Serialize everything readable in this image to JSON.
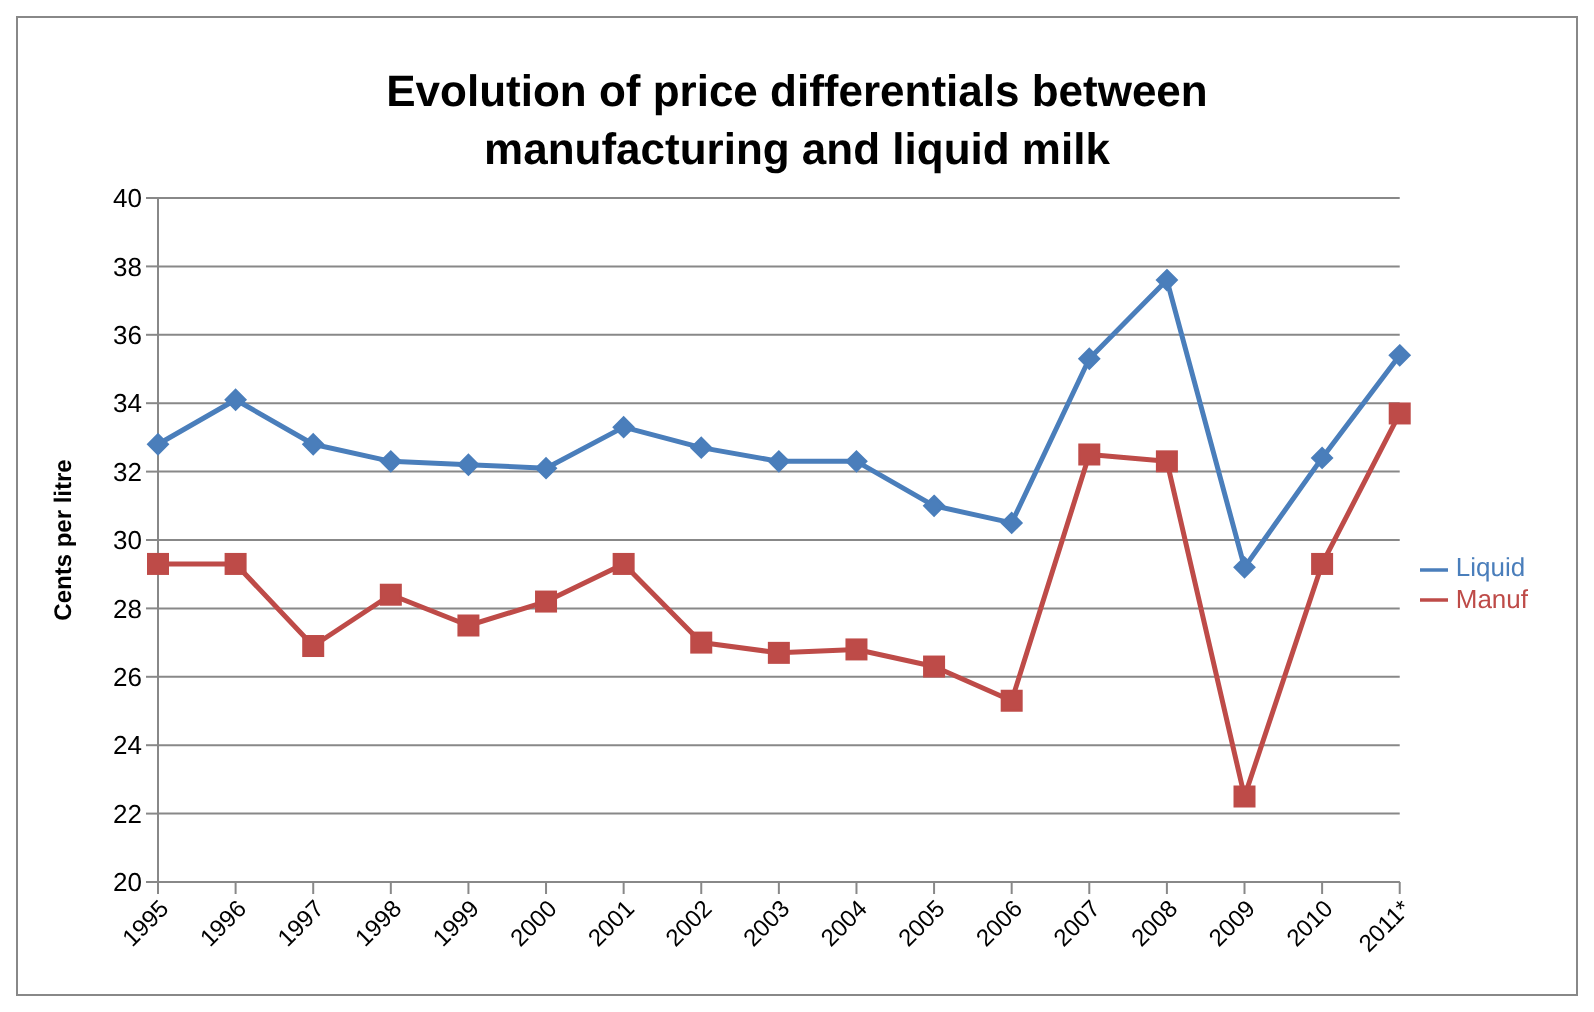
{
  "chart_data": {
    "type": "line",
    "title": "Evolution of price differentials between manufacturing and liquid milk",
    "ylabel": "Cents per litre",
    "categories": [
      "1995",
      "1996",
      "1997",
      "1998",
      "1999",
      "2000",
      "2001",
      "2002",
      "2003",
      "2004",
      "2005",
      "2006",
      "2007",
      "2008",
      "2009",
      "2010",
      "2011*"
    ],
    "series": [
      {
        "name": "Liquid",
        "color": "#4a7ebb",
        "marker": "diamond",
        "values": [
          32.8,
          34.1,
          32.8,
          32.3,
          32.2,
          32.1,
          33.3,
          32.7,
          32.3,
          32.3,
          31.0,
          30.5,
          35.3,
          37.6,
          29.2,
          32.4,
          35.4
        ]
      },
      {
        "name": "Manuf",
        "color": "#be4b48",
        "marker": "square",
        "values": [
          29.3,
          29.3,
          26.9,
          28.4,
          27.5,
          28.2,
          29.3,
          27.0,
          26.7,
          26.8,
          26.3,
          25.3,
          32.5,
          32.3,
          22.5,
          29.3,
          33.7
        ]
      }
    ],
    "ylim": [
      20,
      40
    ],
    "yticks": [
      20,
      22,
      24,
      26,
      28,
      30,
      32,
      34,
      36,
      38,
      40
    ],
    "grid": "y",
    "legend": "right"
  }
}
